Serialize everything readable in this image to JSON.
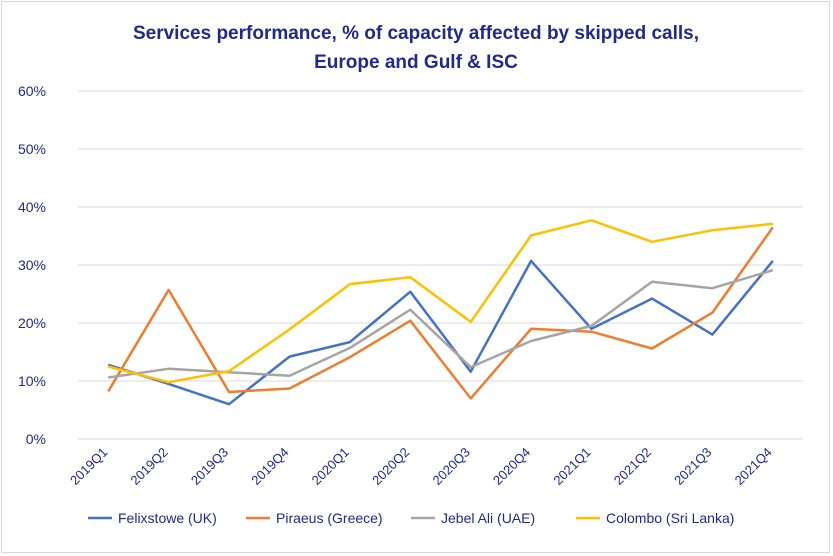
{
  "chart_data": {
    "type": "line",
    "title_lines": [
      "Services performance, % of capacity affected by skipped calls,",
      "Europe and Gulf & ISC"
    ],
    "categories": [
      "2019Q1",
      "2019Q2",
      "2019Q3",
      "2019Q4",
      "2020Q1",
      "2020Q2",
      "2020Q3",
      "2020Q4",
      "2021Q1",
      "2021Q2",
      "2021Q3",
      "2021Q4"
    ],
    "y_ticks": [
      "0%",
      "10%",
      "20%",
      "30%",
      "40%",
      "50%",
      "60%"
    ],
    "ylim": [
      0,
      60
    ],
    "y_unit": "%",
    "grid": true,
    "legend_position": "bottom",
    "series": [
      {
        "name": "Felixstowe (UK)",
        "color": "#4472C4",
        "values": [
          12.8,
          9.5,
          6.0,
          14.2,
          16.7,
          25.4,
          11.6,
          30.7,
          19.0,
          24.2,
          18.0,
          30.7
        ]
      },
      {
        "name": "Piraeus (Greece)",
        "color": "#ED7D31",
        "values": [
          8.2,
          25.7,
          8.1,
          8.7,
          14.1,
          20.4,
          7.0,
          19.0,
          18.5,
          15.6,
          21.8,
          36.5
        ]
      },
      {
        "name": "Jebel Ali (UAE)",
        "color": "#A5A5A5",
        "values": [
          10.6,
          12.1,
          11.5,
          10.9,
          15.7,
          22.3,
          12.4,
          16.9,
          19.5,
          27.1,
          26.0,
          29.1
        ]
      },
      {
        "name": "Colombo (Sri Lanka)",
        "color": "#FFC000",
        "values": [
          12.5,
          9.8,
          11.7,
          18.9,
          26.7,
          27.9,
          20.2,
          35.1,
          37.7,
          34.0,
          36.0,
          37.1
        ]
      }
    ]
  }
}
